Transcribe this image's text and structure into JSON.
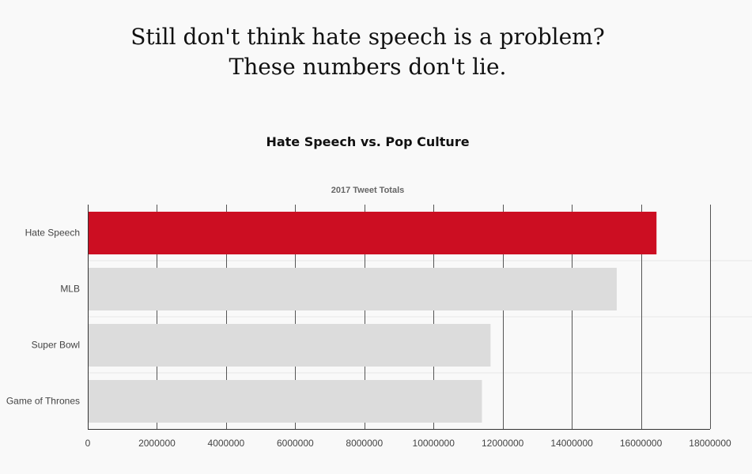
{
  "headline": {
    "line1": "Still don't think hate speech is a problem?",
    "line2": "These numbers don't lie."
  },
  "chart_data": {
    "type": "bar",
    "orientation": "horizontal",
    "title": "Hate Speech vs. Pop Culture",
    "subtitle": "2017 Tweet Totals",
    "categories": [
      "Hate Speech",
      "MLB",
      "Super Bowl",
      "Game of Thrones"
    ],
    "values": [
      16450000,
      15300000,
      11650000,
      11400000
    ],
    "xlim": [
      0,
      18000000
    ],
    "xticks": [
      "0",
      "2000000",
      "4000000",
      "6000000",
      "8000000",
      "10000000",
      "12000000",
      "14000000",
      "16000000",
      "18000000"
    ],
    "grid": true,
    "legend": "none",
    "colors": {
      "highlight": "#cc0e22",
      "default": "#dcdcdc",
      "gridline": "#555555",
      "separator": "#e6e6e6"
    },
    "highlight_category": "Hate Speech"
  }
}
